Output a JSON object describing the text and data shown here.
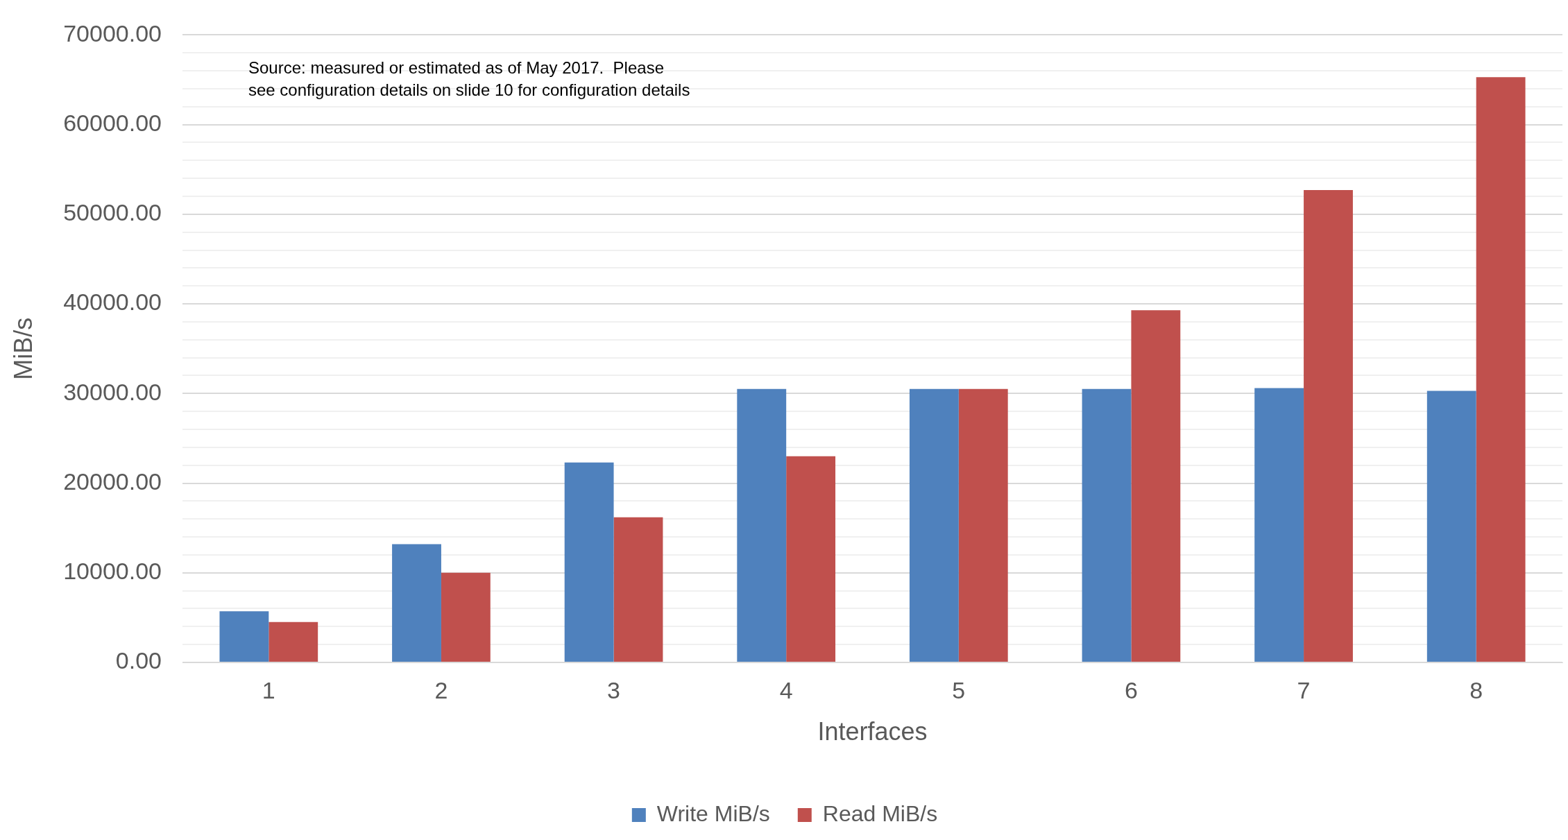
{
  "chart_data": {
    "type": "bar",
    "xlabel": "Interfaces",
    "ylabel": "MiB/s",
    "categories": [
      "1",
      "2",
      "3",
      "4",
      "5",
      "6",
      "7",
      "8"
    ],
    "series": [
      {
        "name": "Write MiB/s",
        "color": "#4f81bd",
        "values": [
          5700,
          13200,
          22300,
          30500,
          30500,
          30500,
          30600,
          30300
        ]
      },
      {
        "name": "Read MiB/s",
        "color": "#c0504d",
        "values": [
          4500,
          10000,
          16200,
          23000,
          30500,
          39300,
          52700,
          65300
        ]
      }
    ],
    "ylim": [
      0,
      70000
    ],
    "yticks": [
      {
        "value": 0,
        "label": "0.00"
      },
      {
        "value": 2000,
        "label": null
      },
      {
        "value": 4000,
        "label": null
      },
      {
        "value": 6000,
        "label": null
      },
      {
        "value": 8000,
        "label": null
      },
      {
        "value": 10000,
        "label": "10000.00"
      },
      {
        "value": 12000,
        "label": null
      },
      {
        "value": 14000,
        "label": null
      },
      {
        "value": 16000,
        "label": null
      },
      {
        "value": 18000,
        "label": null
      },
      {
        "value": 20000,
        "label": "20000.00"
      },
      {
        "value": 22000,
        "label": null
      },
      {
        "value": 24000,
        "label": null
      },
      {
        "value": 26000,
        "label": null
      },
      {
        "value": 28000,
        "label": null
      },
      {
        "value": 30000,
        "label": "30000.00"
      },
      {
        "value": 32000,
        "label": null
      },
      {
        "value": 34000,
        "label": null
      },
      {
        "value": 36000,
        "label": null
      },
      {
        "value": 38000,
        "label": null
      },
      {
        "value": 40000,
        "label": "40000.00"
      },
      {
        "value": 42000,
        "label": null
      },
      {
        "value": 44000,
        "label": null
      },
      {
        "value": 46000,
        "label": null
      },
      {
        "value": 48000,
        "label": null
      },
      {
        "value": 50000,
        "label": "50000.00"
      },
      {
        "value": 52000,
        "label": null
      },
      {
        "value": 54000,
        "label": null
      },
      {
        "value": 56000,
        "label": null
      },
      {
        "value": 58000,
        "label": null
      },
      {
        "value": 60000,
        "label": "60000.00"
      },
      {
        "value": 62000,
        "label": null
      },
      {
        "value": 64000,
        "label": null
      },
      {
        "value": 66000,
        "label": null
      },
      {
        "value": 68000,
        "label": null
      },
      {
        "value": 70000,
        "label": "70000.00"
      }
    ],
    "grid": "y",
    "legend": "bottom",
    "annotations": [
      "Source: measured or estimated as of May 2017.  Please\nsee configuration details on slide 10 for configuration details"
    ]
  }
}
